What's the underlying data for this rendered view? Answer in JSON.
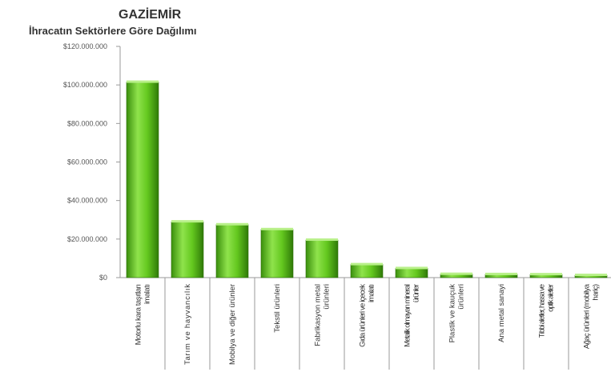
{
  "chart_data": {
    "type": "bar",
    "title": "GAZİEMİR",
    "subtitle": "İhracatın Sektörlere Göre Dağılımı",
    "xlabel": "",
    "ylabel": "",
    "ylim": [
      0,
      120000000
    ],
    "yticks": [
      "$0",
      "$20.000.000",
      "$40.000.000",
      "$60.000.000",
      "$80.000.000",
      "$100.000.000",
      "$120.000.000"
    ],
    "categories": [
      "Motorlu kara taşıtları imalatı",
      "Tarım ve hayvancılık",
      "Mobilya ve diğer ürünler",
      "Tekstil ürünleri",
      "Fabrikasyon metal ürünleri",
      "Gıda ürünleri ve içecek imalatı",
      "Metalik olmayan mineral ürünler",
      "Plastik ve kauçuk ürünleri",
      "Ana metal sanayi",
      "Tıbbi aletler, hassa ve optik aletler",
      "Ağaç ürünleri (mobilya hariç)"
    ],
    "values": [
      101500000,
      29000000,
      27500000,
      25000000,
      19500000,
      6800000,
      4800000,
      1800000,
      1700000,
      1600000,
      1200000
    ],
    "bar_color": "#5cc21a",
    "legend": "none",
    "grid": false
  }
}
